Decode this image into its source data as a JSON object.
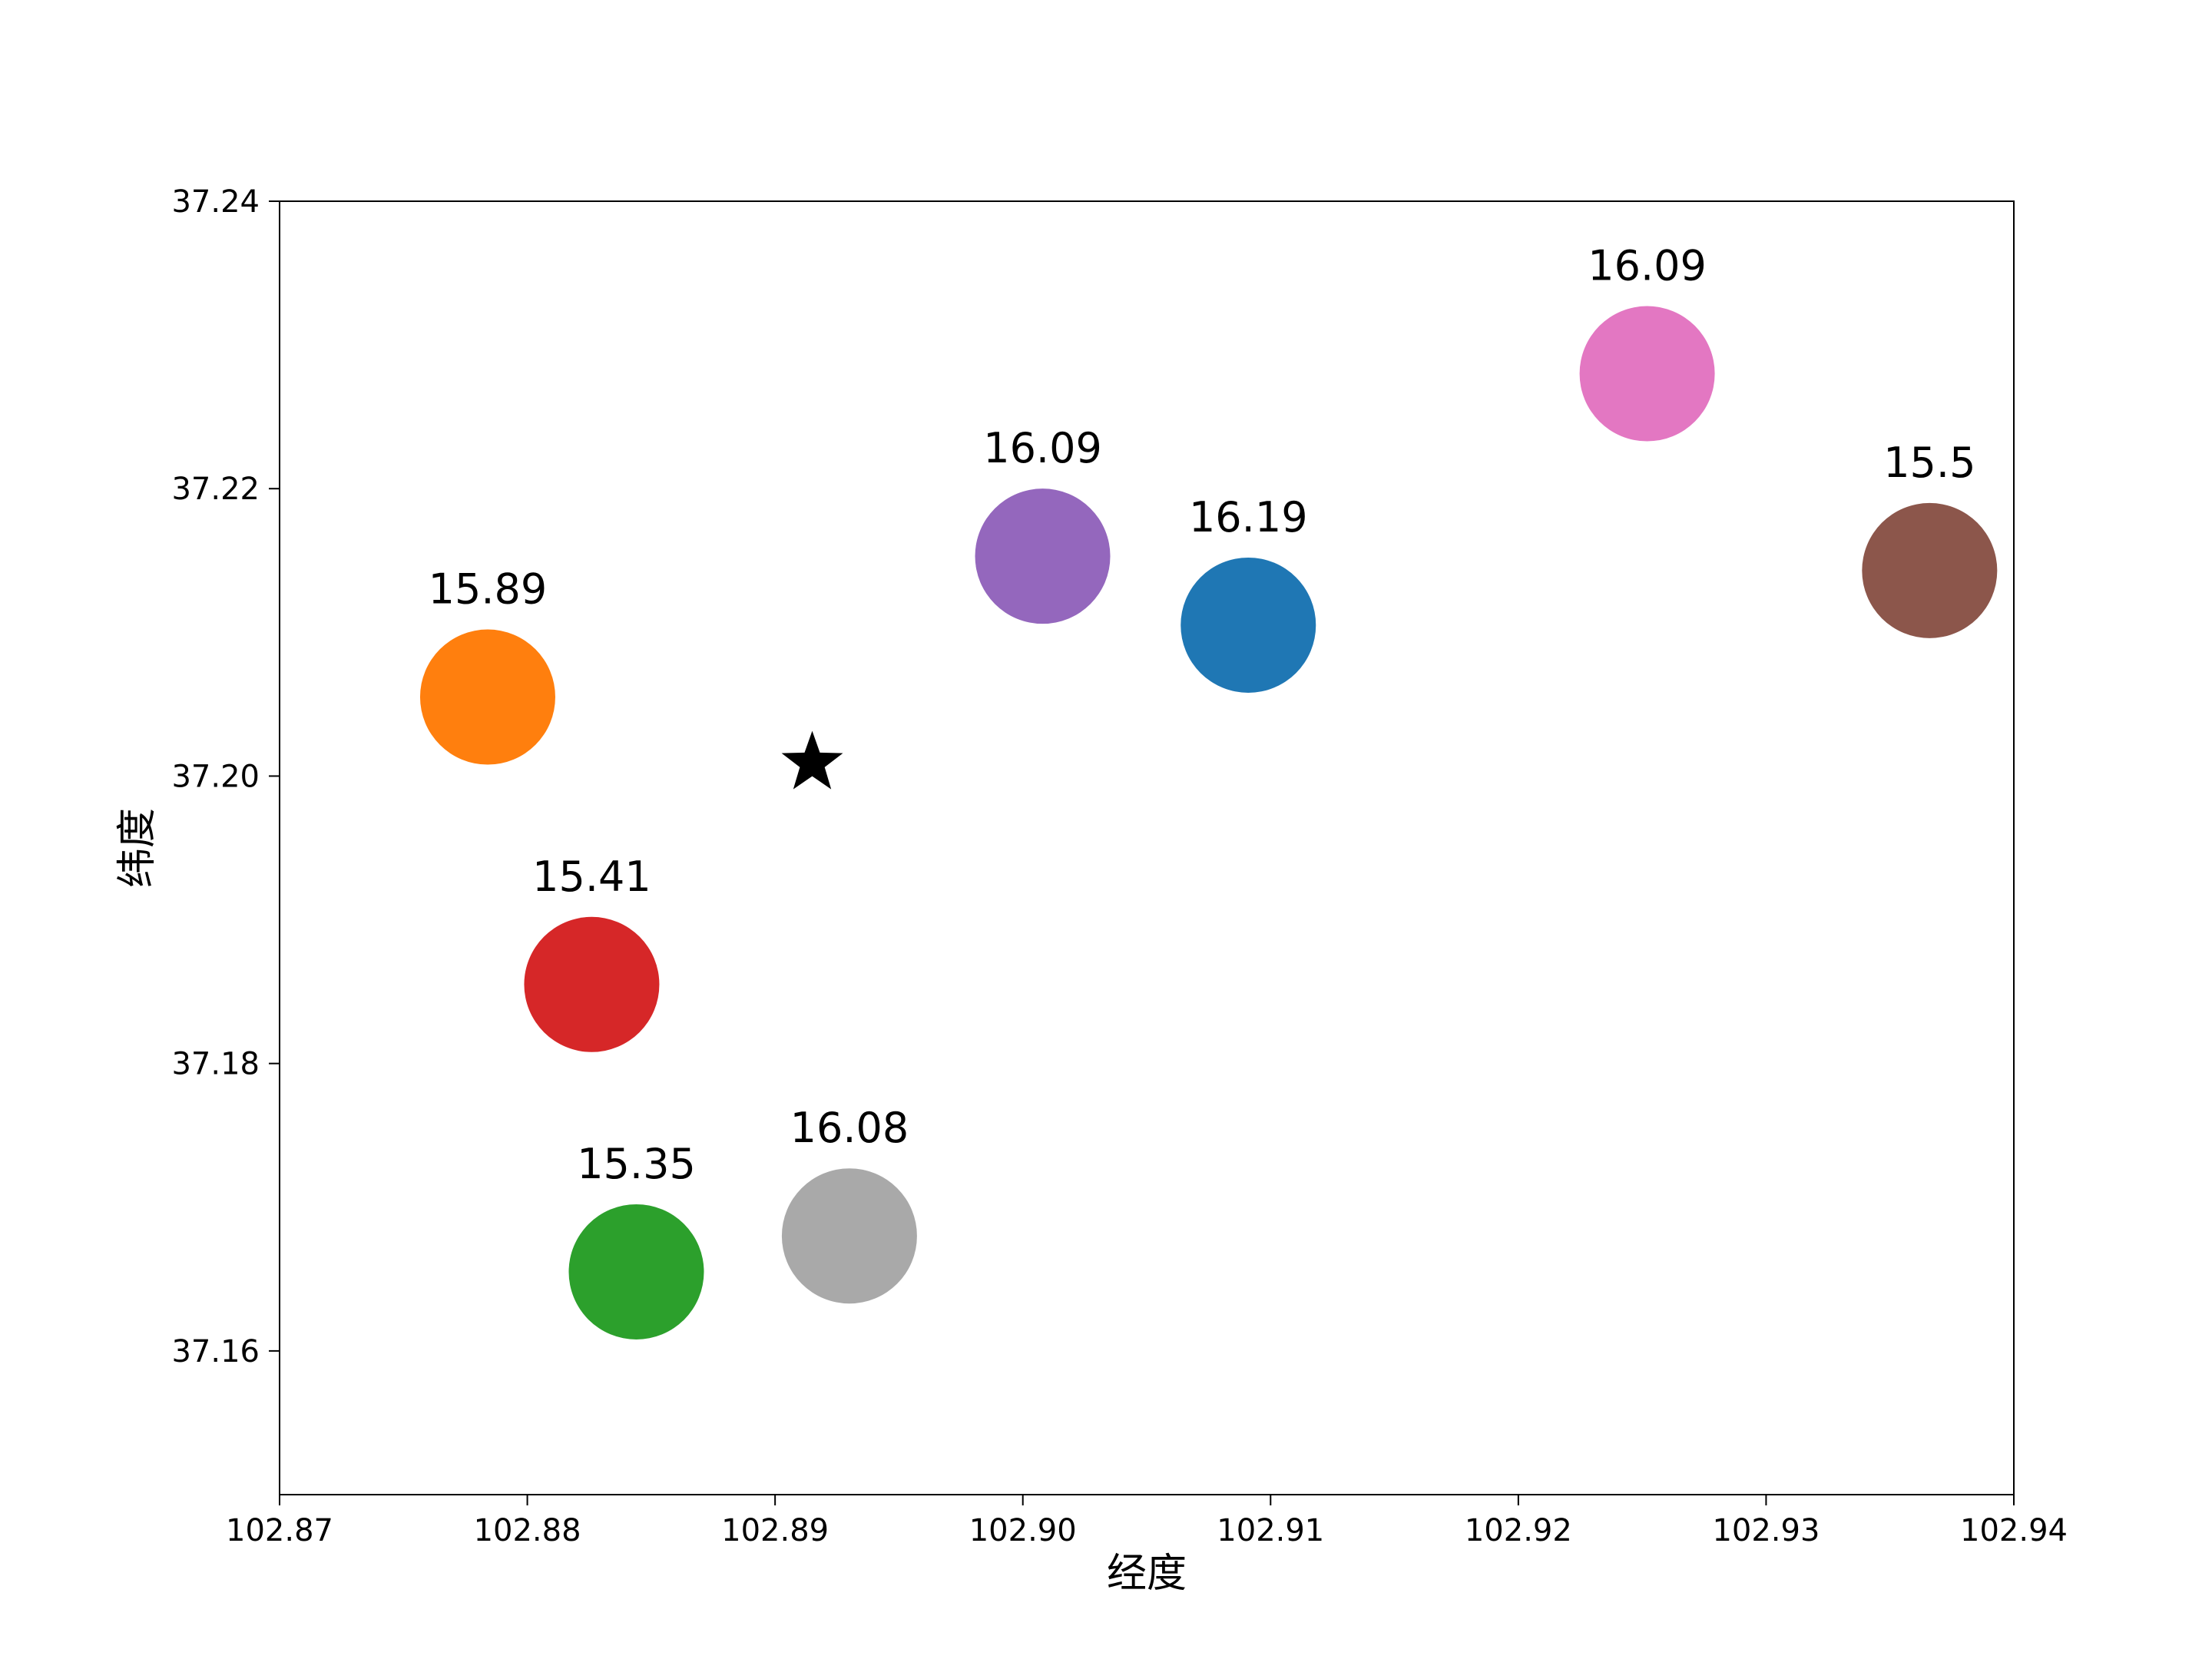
{
  "chart_data": {
    "type": "scatter",
    "xlabel": "经度",
    "ylabel": "纬度",
    "xlim": [
      102.87,
      102.94
    ],
    "ylim": [
      37.15,
      37.24
    ],
    "xticks": [
      {
        "value": 102.87,
        "label": "102.87"
      },
      {
        "value": 102.88,
        "label": "102.88"
      },
      {
        "value": 102.89,
        "label": "102.89"
      },
      {
        "value": 102.9,
        "label": "102.90"
      },
      {
        "value": 102.91,
        "label": "102.91"
      },
      {
        "value": 102.92,
        "label": "102.92"
      },
      {
        "value": 102.93,
        "label": "102.93"
      },
      {
        "value": 102.94,
        "label": "102.94"
      }
    ],
    "yticks": [
      {
        "value": 37.16,
        "label": "37.16"
      },
      {
        "value": 37.18,
        "label": "37.18"
      },
      {
        "value": 37.2,
        "label": "37.20"
      },
      {
        "value": 37.22,
        "label": "37.22"
      },
      {
        "value": 37.24,
        "label": "37.24"
      }
    ],
    "grid": false,
    "points": [
      {
        "x": 102.9091,
        "y": 37.2105,
        "value": 16.19,
        "label": "16.19",
        "color": "#1f77b4"
      },
      {
        "x": 102.8784,
        "y": 37.2055,
        "value": 15.89,
        "label": "15.89",
        "color": "#ff7f0e"
      },
      {
        "x": 102.8844,
        "y": 37.1655,
        "value": 15.35,
        "label": "15.35",
        "color": "#2ca02c"
      },
      {
        "x": 102.8826,
        "y": 37.1855,
        "value": 15.41,
        "label": "15.41",
        "color": "#d62728"
      },
      {
        "x": 102.9008,
        "y": 37.2153,
        "value": 16.09,
        "label": "16.09",
        "color": "#9467bd"
      },
      {
        "x": 102.9366,
        "y": 37.2143,
        "value": 15.5,
        "label": "15.5",
        "color": "#8c564b"
      },
      {
        "x": 102.9252,
        "y": 37.228,
        "value": 16.09,
        "label": "16.09",
        "color": "#e377c2"
      },
      {
        "x": 102.893,
        "y": 37.168,
        "value": 16.08,
        "label": "16.08",
        "color": "#a9a9a9"
      }
    ],
    "marker": {
      "shape": "star",
      "x": 102.8915,
      "y": 37.2009,
      "color": "#000000"
    }
  }
}
